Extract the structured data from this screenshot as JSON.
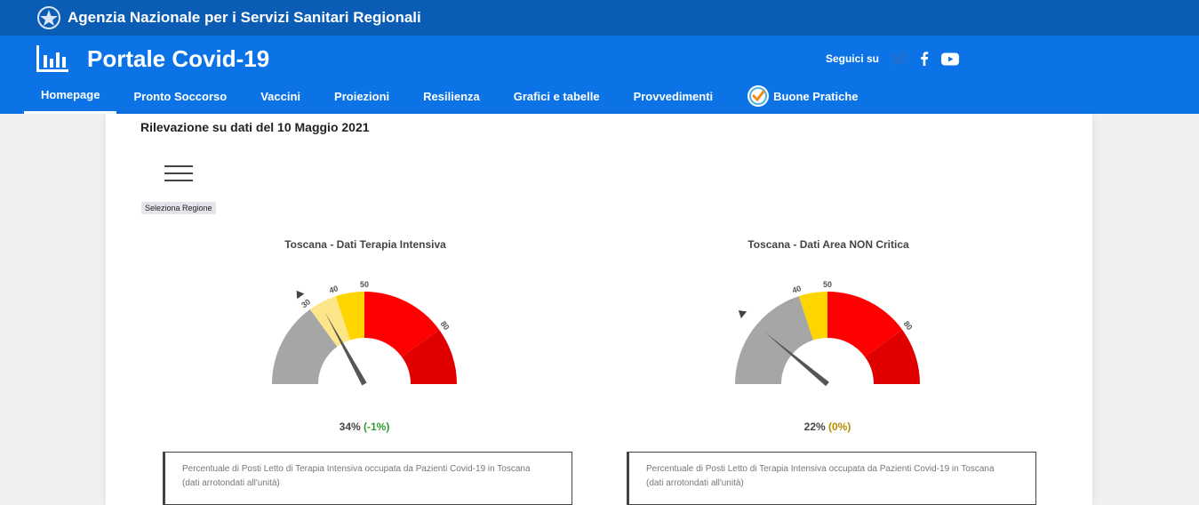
{
  "topbar": {
    "org_name": "Agenzia Nazionale per i Servizi Sanitari Regionali"
  },
  "header": {
    "title": "Portale Covid-19",
    "social_label": "Seguici su",
    "social_icons": [
      "twitter-icon",
      "facebook-icon",
      "youtube-icon"
    ]
  },
  "nav": {
    "items": [
      {
        "label": "Homepage",
        "active": true
      },
      {
        "label": "Pronto Soccorso"
      },
      {
        "label": "Vaccini"
      },
      {
        "label": "Proiezioni"
      },
      {
        "label": "Resilienza"
      },
      {
        "label": "Grafici e tabelle"
      },
      {
        "label": "Provvedimenti"
      },
      {
        "label": "Buone Pratiche",
        "icon": "checkmark-badge-icon"
      }
    ]
  },
  "content": {
    "survey_date": "Rilevazione su dati del 10 Maggio 2021",
    "region_button": "Seleziona Regione"
  },
  "gauges": [
    {
      "title": "Toscana - Dati Terapia Intensiva",
      "value_label": "34%",
      "delta_label": "(-1%)",
      "ticks": [
        "30",
        "40",
        "50",
        "80"
      ],
      "description_line1": "Percentuale di Posti Letto di Terapia Intensiva occupata da Pazienti Covid-19 in Toscana",
      "description_line2": "(dati arrotondati all'unità)"
    },
    {
      "title": "Toscana - Dati Area NON Critica",
      "value_label": "22%",
      "delta_label": "(0%)",
      "ticks": [
        "40",
        "50",
        "80"
      ],
      "description_line1": "Percentuale di Posti Letto di Terapia Intensiva occupata da Pazienti Covid-19 in Toscana",
      "description_line2": "(dati arrotondati all'unità)"
    }
  ],
  "chart_data": [
    {
      "type": "gauge",
      "title": "Toscana - Dati Terapia Intensiva",
      "value": 34,
      "delta": -1,
      "range": [
        0,
        100
      ],
      "bands": [
        {
          "from": 0,
          "to": 30,
          "color": "#a6a6a6"
        },
        {
          "from": 30,
          "to": 40,
          "color": "#fde68a"
        },
        {
          "from": 40,
          "to": 50,
          "color": "#ffd500"
        },
        {
          "from": 50,
          "to": 80,
          "color": "#ff0000"
        },
        {
          "from": 80,
          "to": 100,
          "color": "#e00000"
        }
      ],
      "tick_values": [
        30,
        40,
        50,
        80
      ],
      "marker": 30
    },
    {
      "type": "gauge",
      "title": "Toscana - Dati Area NON Critica",
      "value": 22,
      "delta": 0,
      "range": [
        0,
        100
      ],
      "bands": [
        {
          "from": 0,
          "to": 40,
          "color": "#a6a6a6"
        },
        {
          "from": 40,
          "to": 50,
          "color": "#ffd500"
        },
        {
          "from": 50,
          "to": 80,
          "color": "#ff0000"
        },
        {
          "from": 80,
          "to": 100,
          "color": "#e00000"
        }
      ],
      "tick_values": [
        40,
        50,
        80
      ],
      "marker": 22
    }
  ]
}
